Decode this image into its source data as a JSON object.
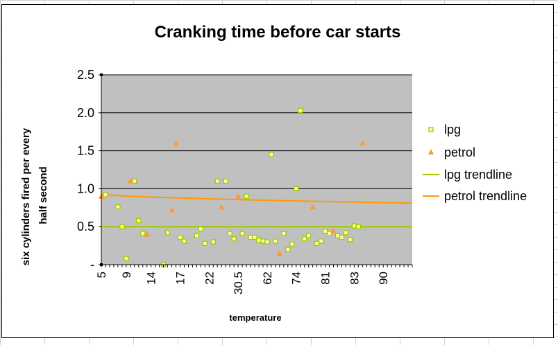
{
  "chart_data": {
    "type": "scatter",
    "title": "Cranking time before car starts",
    "ylabel_lines": [
      "six cylinders fired per every",
      "half second"
    ],
    "xlabel": "temperature",
    "ylim": [
      0,
      2.5
    ],
    "yticks": [
      {
        "value": 0,
        "label": "-"
      },
      {
        "value": 0.5,
        "label": "0.5"
      },
      {
        "value": 1.0,
        "label": "1.0"
      },
      {
        "value": 1.5,
        "label": "1.5"
      },
      {
        "value": 2.0,
        "label": "2.0"
      },
      {
        "value": 2.5,
        "label": "2.5"
      }
    ],
    "x_category_count": 76,
    "xtick_labels": [
      {
        "index": 0,
        "label": "5"
      },
      {
        "index": 6,
        "label": "9"
      },
      {
        "index": 12,
        "label": "14"
      },
      {
        "index": 19,
        "label": "17"
      },
      {
        "index": 26,
        "label": "22"
      },
      {
        "index": 33,
        "label": "30.5"
      },
      {
        "index": 40,
        "label": "62"
      },
      {
        "index": 47,
        "label": "74"
      },
      {
        "index": 54,
        "label": "81"
      },
      {
        "index": 61,
        "label": "83"
      },
      {
        "index": 68,
        "label": "90"
      }
    ],
    "series": [
      {
        "name": "lpg",
        "marker": "square",
        "color": "#99cc00",
        "points": [
          [
            1,
            0.92
          ],
          [
            4,
            0.76
          ],
          [
            5,
            0.5
          ],
          [
            6,
            0.08
          ],
          [
            8,
            1.1
          ],
          [
            9,
            0.58
          ],
          [
            10,
            0.41
          ],
          [
            15,
            0.0
          ],
          [
            16,
            0.42
          ],
          [
            19,
            0.36
          ],
          [
            20,
            0.31
          ],
          [
            23,
            0.38
          ],
          [
            24,
            0.47
          ],
          [
            25,
            0.28
          ],
          [
            27,
            0.3
          ],
          [
            28,
            1.1
          ],
          [
            30,
            1.1
          ],
          [
            31,
            0.41
          ],
          [
            32,
            0.34
          ],
          [
            34,
            0.41
          ],
          [
            35,
            0.9
          ],
          [
            36,
            0.36
          ],
          [
            37,
            0.36
          ],
          [
            38,
            0.32
          ],
          [
            39,
            0.31
          ],
          [
            40,
            0.3
          ],
          [
            41,
            1.45
          ],
          [
            42,
            0.31
          ],
          [
            44,
            0.41
          ],
          [
            45,
            0.2
          ],
          [
            46,
            0.27
          ],
          [
            47,
            1.0
          ],
          [
            48,
            2.03
          ],
          [
            49,
            0.34
          ],
          [
            50,
            0.38
          ],
          [
            52,
            0.28
          ],
          [
            53,
            0.31
          ],
          [
            54,
            0.44
          ],
          [
            55,
            0.41
          ],
          [
            57,
            0.38
          ],
          [
            58,
            0.36
          ],
          [
            59,
            0.42
          ],
          [
            60,
            0.33
          ],
          [
            61,
            0.51
          ],
          [
            62,
            0.5
          ]
        ]
      },
      {
        "name": "petrol",
        "marker": "triangle",
        "color": "#ff9933",
        "points": [
          [
            0,
            0.9
          ],
          [
            7,
            1.1
          ],
          [
            11,
            0.4
          ],
          [
            17,
            0.72
          ],
          [
            18,
            1.6
          ],
          [
            29,
            0.76
          ],
          [
            33,
            0.9
          ],
          [
            43,
            0.15
          ],
          [
            51,
            0.76
          ],
          [
            56,
            0.45
          ],
          [
            63,
            1.6
          ]
        ]
      }
    ],
    "trendlines": [
      {
        "name": "lpg trendline",
        "color": "#99cc00",
        "start": 0.5,
        "end": 0.5
      },
      {
        "name": "petrol trendline",
        "color": "#ff9900",
        "start": 0.93,
        "end": 0.81
      }
    ],
    "legend": [
      {
        "label": "lpg",
        "kind": "square",
        "color": "#99cc00"
      },
      {
        "label": "petrol",
        "kind": "triangle",
        "color": "#ff9933"
      },
      {
        "label": "lpg trendline",
        "kind": "line",
        "color": "#99cc00"
      },
      {
        "label": "petrol trendline",
        "kind": "line",
        "color": "#ff9900"
      }
    ],
    "legend_position": "right",
    "plot_background": "#c0c0c0",
    "grid": true
  }
}
